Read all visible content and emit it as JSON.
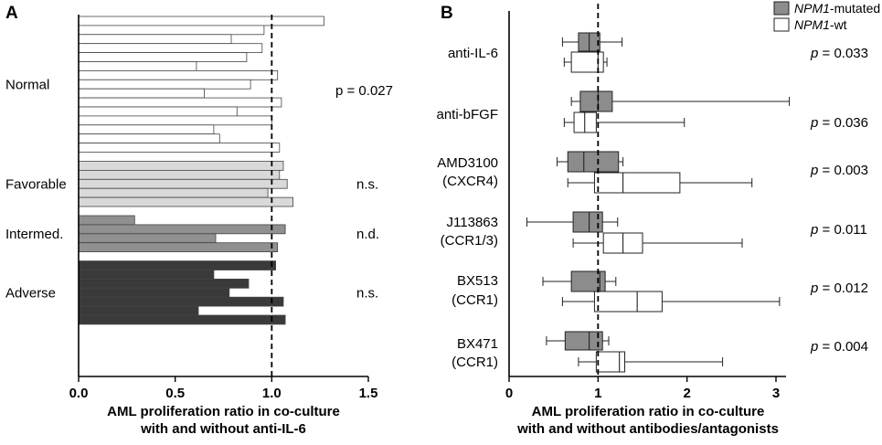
{
  "chart_data": [
    {
      "panel": "A",
      "type": "bar",
      "orientation": "horizontal",
      "xlabel": [
        "AML proliferation ratio in co-culture",
        "with and without anti-IL-6"
      ],
      "xlim": [
        0,
        1.5
      ],
      "xticks": [
        "0.0",
        "0.5",
        "1.0",
        "1.5"
      ],
      "reference_line": 1.0,
      "groups": [
        {
          "name": "Normal",
          "color": "#ffffff",
          "stat": "p = 0.027",
          "values": [
            1.27,
            0.96,
            0.79,
            0.95,
            0.87,
            0.61,
            1.03,
            0.89,
            0.65,
            1.05,
            0.82,
            1.0,
            0.7,
            0.73,
            1.04
          ]
        },
        {
          "name": "Favorable",
          "color": "#d9d9d9",
          "stat": "n.s.",
          "values": [
            1.06,
            1.04,
            1.08,
            0.98,
            1.11
          ]
        },
        {
          "name": "Intermed.",
          "color": "#909090",
          "stat": "n.d.",
          "values": [
            0.29,
            1.07,
            0.71,
            1.03
          ]
        },
        {
          "name": "Adverse",
          "color": "#3a3a3a",
          "stat": "n.s.",
          "values": [
            1.02,
            0.7,
            0.88,
            0.78,
            1.06,
            0.62,
            1.07
          ]
        }
      ]
    },
    {
      "panel": "B",
      "type": "boxplot",
      "orientation": "horizontal",
      "xlabel": [
        "AML proliferation ratio in co-culture",
        "with and without antibodies/antagonists"
      ],
      "xlim": [
        0,
        3.2
      ],
      "xticks": [
        "0",
        "1",
        "2",
        "3"
      ],
      "reference_line": 1.0,
      "legend": [
        {
          "prefix": "NPM1",
          "suffix": "-mutated",
          "color": "#8c8c8c"
        },
        {
          "prefix": "NPM1",
          "suffix": "-wt",
          "color": "#ffffff"
        }
      ],
      "categories": [
        {
          "label": [
            "anti-IL-6"
          ],
          "p": "p = 0.033",
          "mutated": {
            "min": 0.6,
            "q1": 0.78,
            "median": 0.9,
            "q3": 1.02,
            "max": 1.27
          },
          "wt": {
            "min": 0.62,
            "q1": 0.7,
            "median": 1.0,
            "q3": 1.06,
            "max": 1.1
          }
        },
        {
          "label": [
            "anti-bFGF"
          ],
          "p": "p = 0.036",
          "mutated": {
            "min": 0.7,
            "q1": 0.8,
            "median": 1.0,
            "q3": 1.16,
            "max": 3.15
          },
          "wt": {
            "min": 0.62,
            "q1": 0.73,
            "median": 0.85,
            "q3": 0.98,
            "max": 1.97
          }
        },
        {
          "label": [
            "AMD3100",
            "(CXCR4)"
          ],
          "p": "p = 0.003",
          "mutated": {
            "min": 0.54,
            "q1": 0.66,
            "median": 0.84,
            "q3": 1.23,
            "max": 1.28
          },
          "wt": {
            "min": 0.66,
            "q1": 0.96,
            "median": 1.28,
            "q3": 1.92,
            "max": 2.73
          }
        },
        {
          "label": [
            "J113863",
            "(CCR1/3)"
          ],
          "p": "p = 0.011",
          "mutated": {
            "min": 0.2,
            "q1": 0.72,
            "median": 0.9,
            "q3": 1.05,
            "max": 1.22
          },
          "wt": {
            "min": 0.72,
            "q1": 1.06,
            "median": 1.28,
            "q3": 1.5,
            "max": 2.62
          }
        },
        {
          "label": [
            "BX513",
            "(CCR1)"
          ],
          "p": "p = 0.012",
          "mutated": {
            "min": 0.38,
            "q1": 0.7,
            "median": 1.02,
            "q3": 1.08,
            "max": 1.2
          },
          "wt": {
            "min": 0.6,
            "q1": 0.96,
            "median": 1.44,
            "q3": 1.72,
            "max": 3.04
          }
        },
        {
          "label": [
            "BX471",
            "(CCR1)"
          ],
          "p": "p = 0.004",
          "mutated": {
            "min": 0.42,
            "q1": 0.63,
            "median": 0.9,
            "q3": 1.05,
            "max": 1.12
          },
          "wt": {
            "min": 0.78,
            "q1": 0.98,
            "median": 1.24,
            "q3": 1.3,
            "max": 2.4
          }
        }
      ]
    }
  ]
}
